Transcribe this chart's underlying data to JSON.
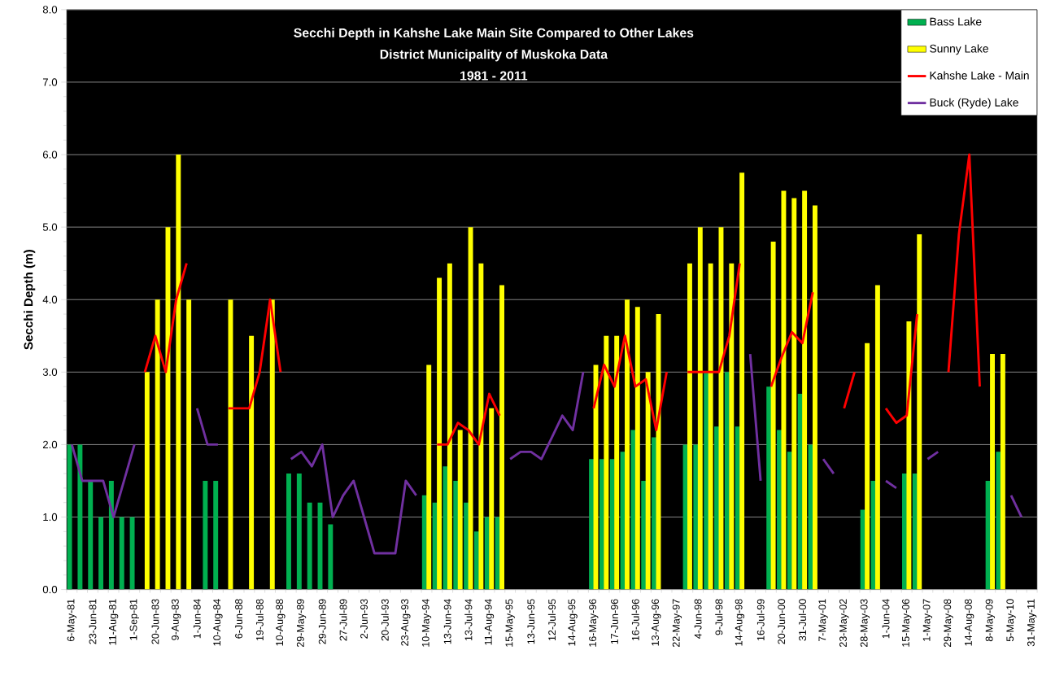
{
  "chart_data": {
    "type": "bar",
    "title": "Secchi Depth in Kahshe Lake Main Site Compared to Other Lakes",
    "subtitle": "District Municipality of Muskoka Data",
    "annotations": [
      "1981 - 2011"
    ],
    "ylabel": "Secchi Depth (m)",
    "categories": [
      "6-May-81",
      null,
      "23-Jun-81",
      null,
      "11-Aug-81",
      null,
      "1-Sep-81",
      null,
      "20-Jun-83",
      null,
      "9-Aug-83",
      null,
      "1-Jun-84",
      null,
      "10-Aug-84",
      null,
      "6-Jun-88",
      null,
      "19-Jul-88",
      null,
      "10-Aug-88",
      null,
      "29-May-89",
      null,
      "29-Jun-89",
      null,
      "27-Jul-89",
      null,
      "2-Jun-93",
      null,
      "20-Jul-93",
      null,
      "23-Aug-93",
      null,
      "10-May-94",
      null,
      "13-Jun-94",
      null,
      "13-Jul-94",
      null,
      "11-Aug-94",
      null,
      "15-May-95",
      null,
      "13-Jun-95",
      null,
      "12-Jul-95",
      null,
      "14-Aug-95",
      null,
      "16-May-96",
      null,
      "17-Jun-96",
      null,
      "16-Jul-96",
      null,
      "13-Aug-96",
      null,
      "22-May-97",
      null,
      "4-Jun-98",
      null,
      "9-Jul-98",
      null,
      "14-Aug-98",
      null,
      "16-Jul-99",
      null,
      "20-Jun-00",
      null,
      "31-Jul-00",
      null,
      "7-May-01",
      null,
      "23-May-02",
      null,
      "28-May-03",
      null,
      "1-Jun-04",
      null,
      "15-May-06",
      null,
      "1-May-07",
      null,
      "29-May-08",
      null,
      "14-Aug-08",
      null,
      "8-May-09",
      null,
      "5-May-10",
      null,
      "31-May-11"
    ],
    "series": [
      {
        "name": "Bass Lake",
        "color": "#00b050",
        "values": [
          2.0,
          2.0,
          1.5,
          1.0,
          1.5,
          1.0,
          1.0,
          null,
          null,
          null,
          null,
          null,
          null,
          1.5,
          1.5,
          null,
          null,
          null,
          null,
          null,
          null,
          1.6,
          1.6,
          1.2,
          1.2,
          0.9,
          null,
          null,
          null,
          null,
          null,
          null,
          null,
          null,
          1.3,
          1.2,
          1.7,
          1.5,
          1.2,
          0.8,
          1.0,
          1.0,
          null,
          null,
          null,
          null,
          null,
          null,
          null,
          null,
          1.8,
          1.8,
          1.8,
          1.9,
          2.2,
          1.5,
          2.1,
          null,
          null,
          2.0,
          2.0,
          3.0,
          2.25,
          3.0,
          2.25,
          null,
          null,
          2.8,
          2.2,
          1.9,
          2.7,
          2.0,
          null,
          null,
          null,
          null,
          1.1,
          1.5,
          null,
          null,
          1.6,
          1.6,
          null,
          null,
          null,
          null,
          null,
          null,
          1.5,
          1.9,
          null,
          null,
          null
        ]
      },
      {
        "name": "Sunny Lake",
        "color": "#ffff00",
        "values": [
          null,
          null,
          null,
          null,
          null,
          null,
          null,
          3.0,
          4.0,
          5.0,
          6.0,
          4.0,
          null,
          null,
          null,
          4.0,
          null,
          3.5,
          null,
          4.0,
          null,
          null,
          null,
          null,
          null,
          null,
          null,
          null,
          null,
          null,
          null,
          null,
          null,
          null,
          3.1,
          4.3,
          4.5,
          2.2,
          5.0,
          4.5,
          2.5,
          4.2,
          null,
          null,
          null,
          null,
          null,
          null,
          null,
          null,
          3.1,
          3.5,
          3.5,
          4.0,
          3.9,
          3.0,
          3.8,
          null,
          null,
          4.5,
          5.0,
          4.5,
          5.0,
          4.5,
          5.75,
          null,
          null,
          4.8,
          5.5,
          5.4,
          5.5,
          5.3,
          null,
          null,
          null,
          null,
          3.4,
          4.2,
          null,
          null,
          3.7,
          4.9,
          null,
          null,
          null,
          null,
          null,
          null,
          3.25,
          3.25,
          null,
          null,
          null
        ]
      },
      {
        "name": "Kahshe Lake - Main",
        "type": "line",
        "color": "#ff0000",
        "values": [
          null,
          null,
          null,
          null,
          null,
          null,
          null,
          3.0,
          3.5,
          3.0,
          4.0,
          4.5,
          null,
          null,
          null,
          2.5,
          2.5,
          2.5,
          3.0,
          4.0,
          3.0,
          null,
          null,
          null,
          null,
          null,
          null,
          null,
          null,
          null,
          null,
          null,
          null,
          null,
          null,
          2.0,
          2.0,
          2.3,
          2.2,
          2.0,
          2.7,
          2.4,
          null,
          null,
          null,
          null,
          null,
          null,
          null,
          null,
          2.5,
          3.1,
          2.8,
          3.5,
          2.8,
          2.9,
          2.2,
          3.0,
          null,
          3.0,
          3.0,
          3.0,
          3.0,
          3.5,
          4.5,
          null,
          null,
          2.8,
          3.2,
          3.55,
          3.4,
          4.1,
          null,
          null,
          2.5,
          3.0,
          null,
          null,
          2.5,
          2.3,
          2.4,
          3.8,
          null,
          null,
          3.0,
          4.9,
          6.0,
          2.8,
          null,
          null,
          null,
          null,
          null
        ]
      },
      {
        "name": "Buck (Ryde) Lake",
        "type": "line",
        "color": "#7030a0",
        "values": [
          2.0,
          1.5,
          1.5,
          1.5,
          1.0,
          1.5,
          2.0,
          null,
          null,
          null,
          null,
          null,
          2.5,
          2.0,
          2.0,
          null,
          null,
          null,
          null,
          null,
          null,
          1.8,
          1.9,
          1.7,
          2.0,
          1.0,
          1.3,
          1.5,
          1.0,
          0.5,
          0.5,
          0.5,
          1.5,
          1.3,
          null,
          null,
          null,
          null,
          null,
          null,
          null,
          null,
          1.8,
          1.9,
          1.9,
          1.8,
          2.1,
          2.4,
          2.2,
          3.0,
          null,
          null,
          null,
          null,
          null,
          null,
          null,
          null,
          null,
          null,
          null,
          null,
          null,
          null,
          null,
          3.25,
          1.5,
          null,
          null,
          null,
          null,
          null,
          1.8,
          1.6,
          null,
          null,
          null,
          null,
          1.5,
          1.4,
          null,
          null,
          1.8,
          1.9,
          null,
          null,
          null,
          null,
          null,
          null,
          1.3,
          1.0,
          null
        ]
      }
    ],
    "ylim": [
      0,
      8
    ],
    "yticks": [
      {
        "value": 0,
        "label": "0.0"
      },
      {
        "value": 1,
        "label": "1.0"
      },
      {
        "value": 2,
        "label": "2.0"
      },
      {
        "value": 3,
        "label": "3.0"
      },
      {
        "value": 4,
        "label": "4.0"
      },
      {
        "value": 5,
        "label": "5.0"
      },
      {
        "value": 6,
        "label": "6.0"
      },
      {
        "value": 7,
        "label": "7.0"
      },
      {
        "value": 8,
        "label": "8.0"
      }
    ],
    "grid": "y",
    "legend": "top right"
  }
}
